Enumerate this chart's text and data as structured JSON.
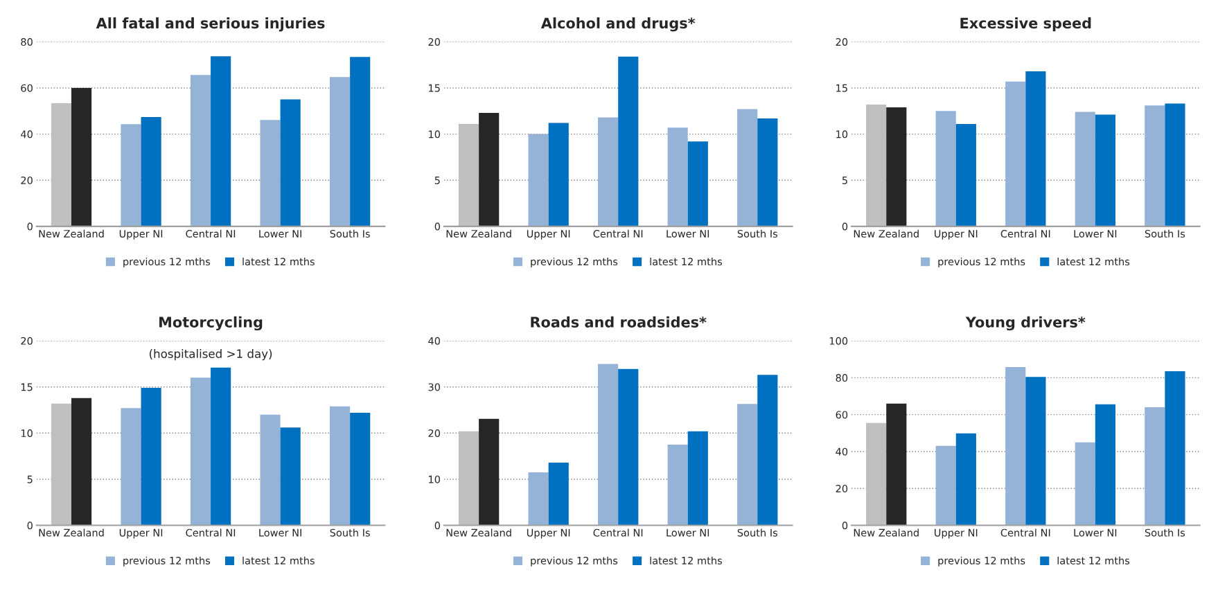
{
  "chart_data": [
    {
      "type": "bar",
      "title": "All fatal and serious injuries",
      "categories": [
        "New Zealand",
        "Upper NI",
        "Central NI",
        "Lower NI",
        "South Is"
      ],
      "ylim": [
        0,
        80
      ],
      "yticks": [
        0,
        20,
        40,
        60,
        80
      ],
      "grid": "y",
      "legend": "bottom",
      "series": [
        {
          "name": "previous 12 mths",
          "color": "#95b3d7",
          "colors": [
            "#bfbfbf",
            "#95b3d7",
            "#95b3d7",
            "#95b3d7",
            "#95b3d7"
          ],
          "values": [
            53.4,
            44.3,
            65.6,
            46.1,
            64.7
          ]
        },
        {
          "name": "latest 12 mths",
          "color": "#0070c0",
          "colors": [
            "#262626",
            "#0070c0",
            "#0070c0",
            "#0070c0",
            "#0070c0"
          ],
          "values": [
            60.0,
            47.4,
            73.7,
            55.0,
            73.4
          ]
        }
      ]
    },
    {
      "type": "bar",
      "title": "Alcohol and drugs*",
      "categories": [
        "New Zealand",
        "Upper NI",
        "Central NI",
        "Lower NI",
        "South Is"
      ],
      "ylim": [
        0,
        20
      ],
      "yticks": [
        0,
        5,
        10,
        15,
        20
      ],
      "grid": "y",
      "legend": "bottom",
      "series": [
        {
          "name": "previous 12 mths",
          "color": "#95b3d7",
          "colors": [
            "#bfbfbf",
            "#95b3d7",
            "#95b3d7",
            "#95b3d7",
            "#95b3d7"
          ],
          "values": [
            11.1,
            10.0,
            11.8,
            10.7,
            12.7
          ]
        },
        {
          "name": "latest 12 mths",
          "color": "#0070c0",
          "colors": [
            "#262626",
            "#0070c0",
            "#0070c0",
            "#0070c0",
            "#0070c0"
          ],
          "values": [
            12.3,
            11.2,
            18.4,
            9.2,
            11.7
          ]
        }
      ]
    },
    {
      "type": "bar",
      "title": "Excessive speed",
      "categories": [
        "New Zealand",
        "Upper NI",
        "Central NI",
        "Lower NI",
        "South Is"
      ],
      "ylim": [
        0,
        20
      ],
      "yticks": [
        0,
        5,
        10,
        15,
        20
      ],
      "grid": "y",
      "legend": "bottom",
      "series": [
        {
          "name": "previous 12 mths",
          "color": "#95b3d7",
          "colors": [
            "#bfbfbf",
            "#95b3d7",
            "#95b3d7",
            "#95b3d7",
            "#95b3d7"
          ],
          "values": [
            13.2,
            12.5,
            15.7,
            12.4,
            13.1
          ]
        },
        {
          "name": "latest 12 mths",
          "color": "#0070c0",
          "colors": [
            "#262626",
            "#0070c0",
            "#0070c0",
            "#0070c0",
            "#0070c0"
          ],
          "values": [
            12.9,
            11.1,
            16.8,
            12.1,
            13.3
          ]
        }
      ]
    },
    {
      "type": "bar",
      "title": "Motorcycling",
      "annotations": [
        "(hospitalised >1 day)"
      ],
      "categories": [
        "New Zealand",
        "Upper NI",
        "Central NI",
        "Lower NI",
        "South Is"
      ],
      "ylim": [
        0,
        20
      ],
      "yticks": [
        0,
        5,
        10,
        15,
        20
      ],
      "grid": "y",
      "legend": "bottom",
      "series": [
        {
          "name": "previous 12 mths",
          "color": "#95b3d7",
          "colors": [
            "#bfbfbf",
            "#95b3d7",
            "#95b3d7",
            "#95b3d7",
            "#95b3d7"
          ],
          "values": [
            13.2,
            12.7,
            16.0,
            12.0,
            12.9
          ]
        },
        {
          "name": "latest 12 mths",
          "color": "#0070c0",
          "colors": [
            "#262626",
            "#0070c0",
            "#0070c0",
            "#0070c0",
            "#0070c0"
          ],
          "values": [
            13.8,
            14.9,
            17.1,
            10.6,
            12.2
          ]
        }
      ]
    },
    {
      "type": "bar",
      "title": "Roads and roadsides*",
      "categories": [
        "New Zealand",
        "Upper NI",
        "Central NI",
        "Lower NI",
        "South Is"
      ],
      "ylim": [
        0,
        40
      ],
      "yticks": [
        0,
        10,
        20,
        30,
        40
      ],
      "grid": "y",
      "legend": "bottom",
      "series": [
        {
          "name": "previous 12 mths",
          "color": "#95b3d7",
          "colors": [
            "#bfbfbf",
            "#95b3d7",
            "#95b3d7",
            "#95b3d7",
            "#95b3d7"
          ],
          "values": [
            20.4,
            11.5,
            35.0,
            17.5,
            26.3
          ]
        },
        {
          "name": "latest 12 mths",
          "color": "#0070c0",
          "colors": [
            "#262626",
            "#0070c0",
            "#0070c0",
            "#0070c0",
            "#0070c0"
          ],
          "values": [
            23.1,
            13.6,
            33.9,
            20.4,
            32.6
          ]
        }
      ]
    },
    {
      "type": "bar",
      "title": "Young drivers*",
      "categories": [
        "New Zealand",
        "Upper NI",
        "Central NI",
        "Lower NI",
        "South Is"
      ],
      "ylim": [
        0,
        100
      ],
      "yticks": [
        0,
        20,
        40,
        60,
        80,
        100
      ],
      "grid": "y",
      "legend": "bottom",
      "series": [
        {
          "name": "previous 12 mths",
          "color": "#95b3d7",
          "colors": [
            "#bfbfbf",
            "#95b3d7",
            "#95b3d7",
            "#95b3d7",
            "#95b3d7"
          ],
          "values": [
            55.5,
            43.1,
            85.8,
            45.0,
            64.0
          ]
        },
        {
          "name": "latest 12 mths",
          "color": "#0070c0",
          "colors": [
            "#262626",
            "#0070c0",
            "#0070c0",
            "#0070c0",
            "#0070c0"
          ],
          "values": [
            66.0,
            49.8,
            80.4,
            65.6,
            83.5
          ]
        }
      ]
    }
  ]
}
